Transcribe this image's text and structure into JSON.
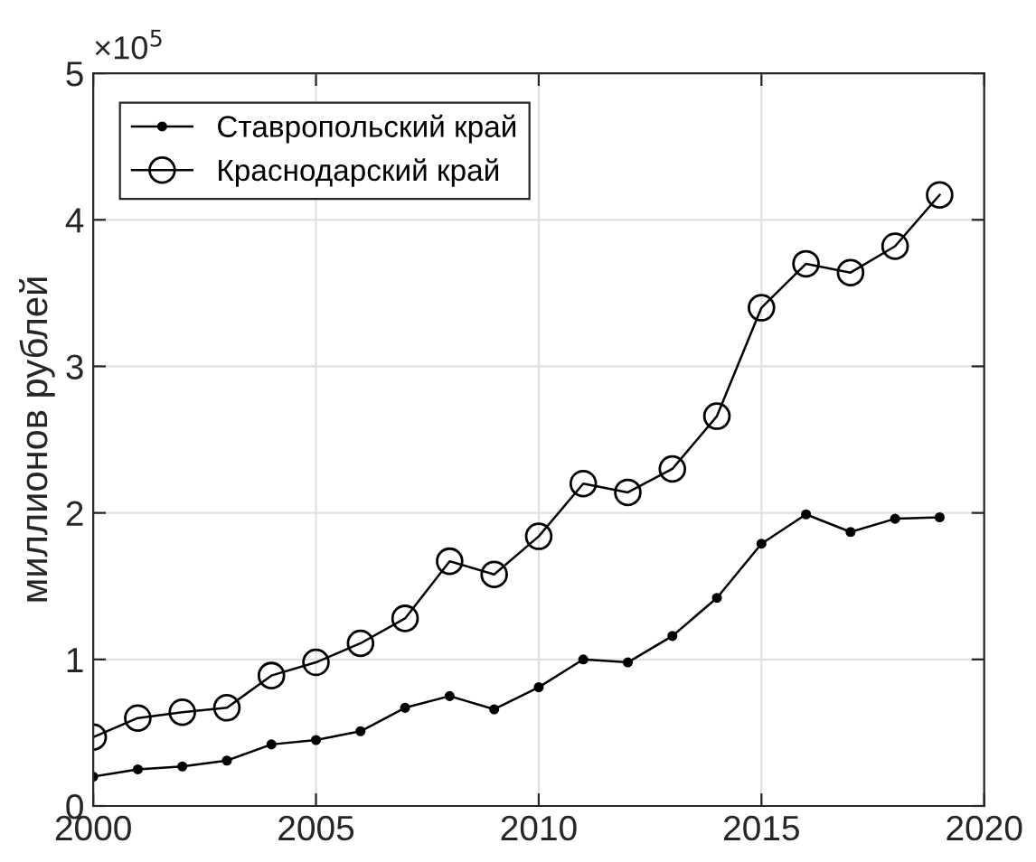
{
  "chart_data": {
    "type": "line",
    "ylabel": "миллионов рублей",
    "annotations": [
      "×10$^{5}$"
    ],
    "x": [
      2000,
      2001,
      2002,
      2003,
      2004,
      2005,
      2006,
      2007,
      2008,
      2009,
      2010,
      2011,
      2012,
      2013,
      2014,
      2015,
      2016,
      2017,
      2018,
      2019
    ],
    "series": [
      {
        "name": "Ставропольский край",
        "color": "#000000",
        "marker": "circle",
        "values": [
          0.2,
          0.25,
          0.27,
          0.31,
          0.42,
          0.45,
          0.51,
          0.67,
          0.75,
          0.66,
          0.81,
          1.0,
          0.98,
          1.16,
          1.42,
          1.79,
          1.99,
          1.87,
          1.96,
          1.97
        ]
      },
      {
        "name": "Краснодарский край",
        "color": "#000000",
        "marker": "circle",
        "values": [
          0.47,
          0.6,
          0.64,
          0.67,
          0.89,
          0.98,
          1.11,
          1.28,
          1.67,
          1.58,
          1.84,
          2.2,
          2.14,
          2.3,
          2.66,
          3.4,
          3.7,
          3.64,
          3.82,
          4.17
        ]
      }
    ],
    "xlim": [
      2000,
      2020
    ],
    "xticks": [
      2000,
      2005,
      2010,
      2015,
      2020
    ],
    "ylim": [
      0,
      5
    ],
    "yticks": [
      0,
      1,
      2,
      3,
      4,
      5
    ],
    "grid": true,
    "legend": "top left",
    "line_style": "solid"
  }
}
